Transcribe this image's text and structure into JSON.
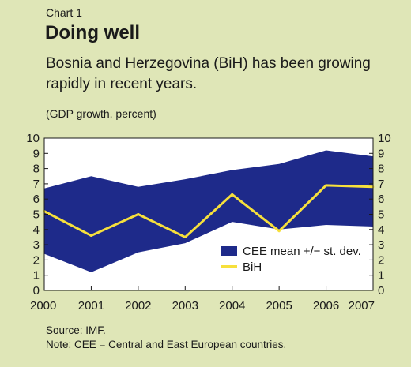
{
  "header": {
    "chart_number": "Chart 1",
    "title": "Doing well",
    "subtitle": "Bosnia and Herzegovina (BiH) has been growing rapidly in recent years.",
    "units": "(GDP growth, percent)"
  },
  "footer": {
    "source": "Source: IMF.",
    "note": "Note: CEE = Central and East European countries."
  },
  "chart_data": {
    "type": "area",
    "x": [
      "2000",
      "2001",
      "2002",
      "2003",
      "2004",
      "2005",
      "2006",
      "2007"
    ],
    "series": [
      {
        "name": "CEE mean +/− st. dev.",
        "type": "band",
        "upper": [
          6.7,
          7.5,
          6.8,
          7.3,
          7.9,
          8.3,
          9.2,
          8.8
        ],
        "lower": [
          2.4,
          1.2,
          2.5,
          3.1,
          4.5,
          4.0,
          4.3,
          4.2
        ],
        "color": "#1e2a8a"
      },
      {
        "name": "BiH",
        "type": "line",
        "values": [
          5.2,
          3.6,
          5.0,
          3.5,
          6.3,
          3.9,
          6.9,
          6.8
        ],
        "color": "#f7e03c"
      }
    ],
    "y_ticks": [
      "0",
      "1",
      "2",
      "3",
      "4",
      "5",
      "6",
      "7",
      "8",
      "9",
      "10"
    ],
    "ylim": [
      0,
      10
    ],
    "legend_position": "bottom-right",
    "grid": false,
    "dual_y_axis": true
  },
  "colors": {
    "background": "#dfe6b7",
    "plot_background": "#ffffff",
    "band": "#1e2a8a",
    "line": "#f7e03c"
  }
}
